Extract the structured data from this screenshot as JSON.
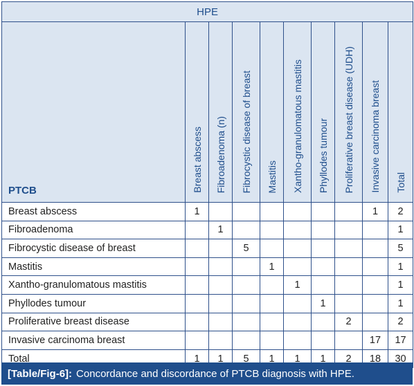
{
  "header": {
    "group_label": "HPE",
    "row_label": "PTCB",
    "columns": [
      "Breast abscess",
      "Fibroadenoma (n)",
      "Fibrocystic disease of breast",
      "Mastitis",
      "Xantho-granulomatous mastitis",
      "Phyllodes tumour",
      "Proliferative breast disease (UDH)",
      "Invasive carcinoma breast",
      "Total"
    ]
  },
  "rows": [
    {
      "label": "Breast abscess",
      "cells": [
        "1",
        "",
        "",
        "",
        "",
        "",
        "",
        "1",
        "2"
      ]
    },
    {
      "label": "Fibroadenoma",
      "cells": [
        "",
        "1",
        "",
        "",
        "",
        "",
        "",
        "",
        "1"
      ]
    },
    {
      "label": "Fibrocystic disease of breast",
      "cells": [
        "",
        "",
        "5",
        "",
        "",
        "",
        "",
        "",
        "5"
      ]
    },
    {
      "label": "Mastitis",
      "cells": [
        "",
        "",
        "",
        "1",
        "",
        "",
        "",
        "",
        "1"
      ]
    },
    {
      "label": "Xantho-granulomatous mastitis",
      "cells": [
        "",
        "",
        "",
        "",
        "1",
        "",
        "",
        "",
        "1"
      ]
    },
    {
      "label": "Phyllodes tumour",
      "cells": [
        "",
        "",
        "",
        "",
        "",
        "1",
        "",
        "",
        "1"
      ]
    },
    {
      "label": "Proliferative breast disease",
      "cells": [
        "",
        "",
        "",
        "",
        "",
        "",
        "2",
        "",
        "2"
      ]
    },
    {
      "label": "Invasive carcinoma breast",
      "cells": [
        "",
        "",
        "",
        "",
        "",
        "",
        "",
        "17",
        "17"
      ]
    },
    {
      "label": "Total",
      "cells": [
        "1",
        "1",
        "5",
        "1",
        "1",
        "1",
        "2",
        "18",
        "30"
      ]
    }
  ],
  "caption": {
    "tag": "[Table/Fig-6]:",
    "text": "Concordance and discordance of PTCB diagnosis with HPE."
  },
  "colors": {
    "header_bg": "#dbe5f1",
    "accent": "#1f4e8c",
    "caption_bg": "#1f4e8c"
  }
}
